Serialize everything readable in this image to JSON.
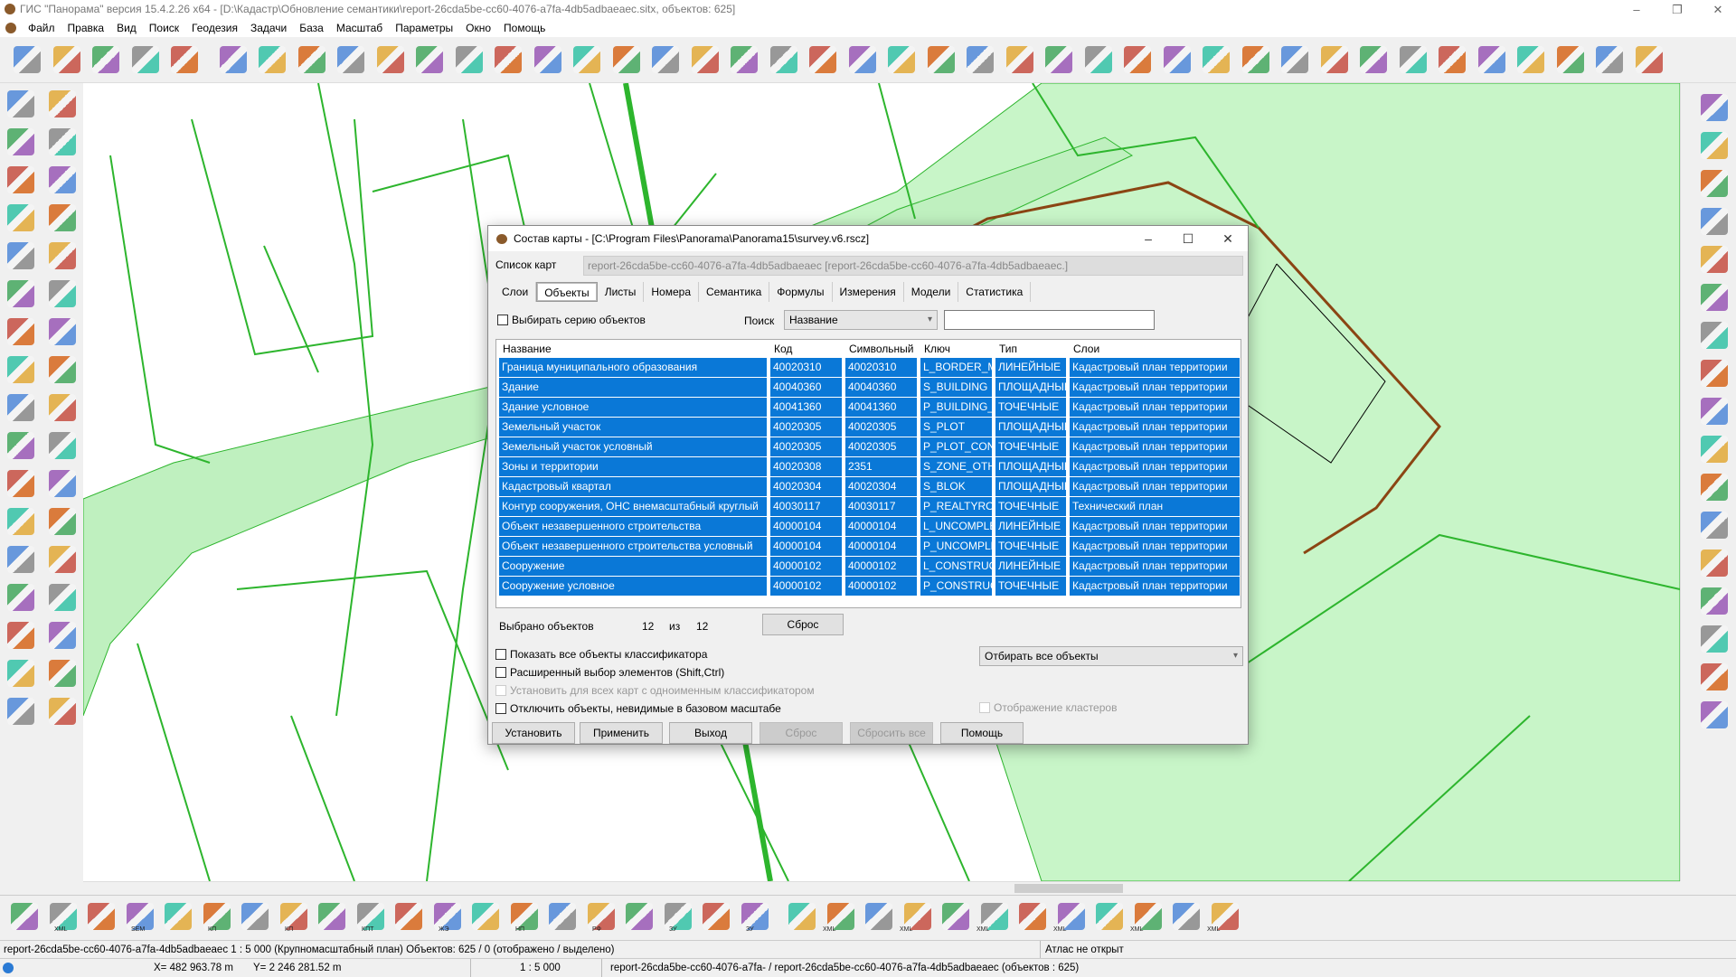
{
  "app": {
    "title": "ГИС \"Панорама\" версия 15.4.2.26 x64 - [D:\\Кадастр\\Обновление семантики\\report-26cda5be-cc60-4076-a7fa-4db5adbaeaec.sitx, объектов: 625]",
    "menu": [
      "Файл",
      "Правка",
      "Вид",
      "Поиск",
      "Геодезия",
      "Задачи",
      "База",
      "Масштаб",
      "Параметры",
      "Окно",
      "Помощь"
    ]
  },
  "colors": {
    "accent": "#0a78d7",
    "map_fill": "#c8f5c8",
    "map_line": "#2db52d"
  },
  "dialog": {
    "title": "Состав карты - [C:\\Program Files\\Panorama\\Panorama15\\survey.v6.rscz]",
    "map_list_label": "Список карт",
    "map_list_value": "report-26cda5be-cc60-4076-a7fa-4db5adbaeaec [report-26cda5be-cc60-4076-a7fa-4db5adbaeaec.]",
    "tabs": [
      "Слои",
      "Объекты",
      "Листы",
      "Номера",
      "Семантика",
      "Формулы",
      "Измерения",
      "Модели",
      "Статистика"
    ],
    "active_tab": "Объекты",
    "select_series_label": "Выбирать серию объектов",
    "search_label": "Поиск",
    "search_field": "Название",
    "search_value": "",
    "table": {
      "columns": [
        "Название",
        "Код",
        "Символьный",
        "Ключ",
        "Тип",
        "Слои"
      ],
      "rows": [
        [
          "Граница муниципального образования",
          "40020310",
          "40020310",
          "L_BORDER_M",
          "ЛИНЕЙНЫЕ",
          "Кадастровый план территории"
        ],
        [
          "Здание",
          "40040360",
          "40040360",
          "S_BUILDING",
          "ПЛОЩАДНЫЕ",
          "Кадастровый план территории"
        ],
        [
          "Здание условное",
          "40041360",
          "40041360",
          "P_BUILDING_",
          "ТОЧЕЧНЫЕ",
          "Кадастровый план территории"
        ],
        [
          "Земельный участок",
          "40020305",
          "40020305",
          "S_PLOT",
          "ПЛОЩАДНЫЕ",
          "Кадастровый план территории"
        ],
        [
          "Земельный участок условный",
          "40020305",
          "40020305",
          "P_PLOT_CON",
          "ТОЧЕЧНЫЕ",
          "Кадастровый план территории"
        ],
        [
          "Зоны и территории",
          "40020308",
          "2351",
          "S_ZONE_OTH",
          "ПЛОЩАДНЫЕ",
          "Кадастровый план территории"
        ],
        [
          "Кадастровый квартал",
          "40020304",
          "40020304",
          "S_BLOK",
          "ПЛОЩАДНЫЕ",
          "Кадастровый план территории"
        ],
        [
          "Контур сооружения, ОНС внемасштабный круглый",
          "40030117",
          "40030117",
          "P_REALTYRO",
          "ТОЧЕЧНЫЕ",
          "Технический план"
        ],
        [
          "Объект незавершенного строительства",
          "40000104",
          "40000104",
          "L_UNCOMPLE",
          "ЛИНЕЙНЫЕ",
          "Кадастровый план территории"
        ],
        [
          "Объект незавершенного строительства условный",
          "40000104",
          "40000104",
          "P_UNCOMPLE",
          "ТОЧЕЧНЫЕ",
          "Кадастровый план территории"
        ],
        [
          "Сооружение",
          "40000102",
          "40000102",
          "L_CONSTRUC",
          "ЛИНЕЙНЫЕ",
          "Кадастровый план территории"
        ],
        [
          "Сооружение условное",
          "40000102",
          "40000102",
          "P_CONSTRUC",
          "ТОЧЕЧНЫЕ",
          "Кадастровый план территории"
        ]
      ]
    },
    "selected_label": "Выбрано объектов",
    "selected_count": "12",
    "of_label": "из",
    "total_count": "12",
    "reset_small": "Сброс",
    "checkboxes": [
      {
        "label": "Показать все объекты классификатора",
        "checked": false,
        "disabled": false
      },
      {
        "label": "Расширенный выбор элементов (Shift,Ctrl)",
        "checked": false,
        "disabled": false
      },
      {
        "label": "Установить для всех карт с одноименным классификатором",
        "checked": false,
        "disabled": true
      },
      {
        "label": "Отключить объекты, невидимые в базовом масштабе",
        "checked": false,
        "disabled": false
      }
    ],
    "filter_select": "Отбирать все объекты",
    "clusters_label": "Отображение кластеров",
    "buttons": [
      "Установить",
      "Применить",
      "Выход",
      "Сброс",
      "Сбросить все",
      "Помощь"
    ]
  },
  "status": {
    "line1": "report-26cda5be-cc60-4076-a7fa-4db5adbaeaec  1 : 5 000 (Крупномасштабный план) Объектов: 625 / 0 (отображено / выделено)",
    "atlas": "Атлас не открыт",
    "x": "X=   482 963.78 m",
    "y": "Y= 2 246 281.52 m",
    "scale": "1 : 5 000",
    "maps": "report-26cda5be-cc60-4076-a7fa- / report-26cda5be-cc60-4076-a7fa-4db5adbaeaec   (объектов : 625)"
  },
  "bottom_toolbar_labels": [
    "XML",
    "SEM",
    "КП",
    "КП",
    "КПТ",
    "ЖЭ",
    "НП",
    "РФ",
    "ЗУ",
    "ЗУ",
    "XML",
    "XML",
    "XML",
    "XML",
    "XML",
    "XML"
  ]
}
